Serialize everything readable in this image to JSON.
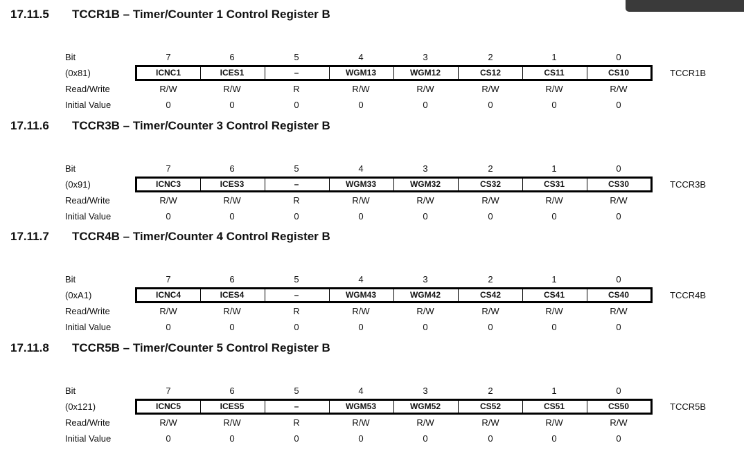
{
  "sections": [
    {
      "number": "17.11.5",
      "title": "TCCR1B – Timer/Counter 1 Control Register B",
      "bit_label": "Bit",
      "bits": [
        7,
        6,
        5,
        4,
        3,
        2,
        1,
        0
      ],
      "address": "(0x81)",
      "fields": [
        "ICNC1",
        "ICES1",
        "–",
        "WGM13",
        "WGM12",
        "CS12",
        "CS11",
        "CS10"
      ],
      "register": "TCCR1B",
      "rw_label": "Read/Write",
      "access": [
        "R/W",
        "R/W",
        "R",
        "R/W",
        "R/W",
        "R/W",
        "R/W",
        "R/W"
      ],
      "init_label": "Initial Value",
      "initial": [
        0,
        0,
        0,
        0,
        0,
        0,
        0,
        0
      ]
    },
    {
      "number": "17.11.6",
      "title": "TCCR3B – Timer/Counter 3 Control Register B",
      "bit_label": "Bit",
      "bits": [
        7,
        6,
        5,
        4,
        3,
        2,
        1,
        0
      ],
      "address": "(0x91)",
      "fields": [
        "ICNC3",
        "ICES3",
        "–",
        "WGM33",
        "WGM32",
        "CS32",
        "CS31",
        "CS30"
      ],
      "register": "TCCR3B",
      "rw_label": "Read/Write",
      "access": [
        "R/W",
        "R/W",
        "R",
        "R/W",
        "R/W",
        "R/W",
        "R/W",
        "R/W"
      ],
      "init_label": "Initial Value",
      "initial": [
        0,
        0,
        0,
        0,
        0,
        0,
        0,
        0
      ]
    },
    {
      "number": "17.11.7",
      "title": "TCCR4B – Timer/Counter 4 Control Register B",
      "bit_label": "Bit",
      "bits": [
        7,
        6,
        5,
        4,
        3,
        2,
        1,
        0
      ],
      "address": "(0xA1)",
      "fields": [
        "ICNC4",
        "ICES4",
        "–",
        "WGM43",
        "WGM42",
        "CS42",
        "CS41",
        "CS40"
      ],
      "register": "TCCR4B",
      "rw_label": "Read/Write",
      "access": [
        "R/W",
        "R/W",
        "R",
        "R/W",
        "R/W",
        "R/W",
        "R/W",
        "R/W"
      ],
      "init_label": "Initial Value",
      "initial": [
        0,
        0,
        0,
        0,
        0,
        0,
        0,
        0
      ]
    },
    {
      "number": "17.11.8",
      "title": "TCCR5B – Timer/Counter 5 Control Register B",
      "bit_label": "Bit",
      "bits": [
        7,
        6,
        5,
        4,
        3,
        2,
        1,
        0
      ],
      "address": "(0x121)",
      "fields": [
        "ICNC5",
        "ICES5",
        "–",
        "WGM53",
        "WGM52",
        "CS52",
        "CS51",
        "CS50"
      ],
      "register": "TCCR5B",
      "rw_label": "Read/Write",
      "access": [
        "R/W",
        "R/W",
        "R",
        "R/W",
        "R/W",
        "R/W",
        "R/W",
        "R/W"
      ],
      "init_label": "Initial Value",
      "initial": [
        0,
        0,
        0,
        0,
        0,
        0,
        0,
        0
      ]
    }
  ]
}
